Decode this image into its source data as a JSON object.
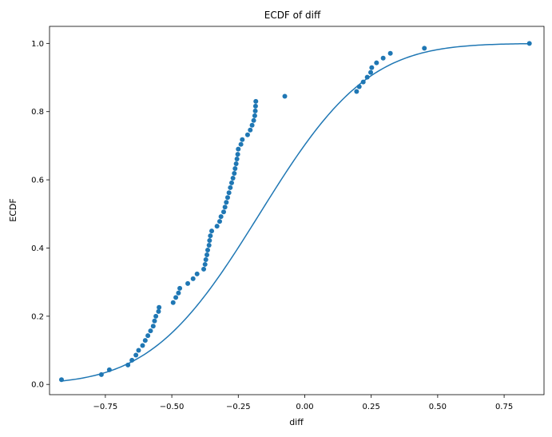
{
  "chart_data": {
    "type": "scatter",
    "title": "ECDF of diff",
    "xlabel": "diff",
    "ylabel": "ECDF",
    "xlim": [
      -0.96,
      0.9
    ],
    "ylim": [
      -0.03,
      1.05
    ],
    "xticks": [
      -0.75,
      -0.5,
      -0.25,
      0.0,
      0.25,
      0.5,
      0.75
    ],
    "xtick_labels": [
      "−0.75",
      "−0.50",
      "−0.25",
      "0.00",
      "0.25",
      "0.50",
      "0.75"
    ],
    "yticks": [
      0.0,
      0.2,
      0.4,
      0.6,
      0.8,
      1.0
    ],
    "ytick_labels": [
      "0.0",
      "0.2",
      "0.4",
      "0.6",
      "0.8",
      "1.0"
    ],
    "grid": false,
    "color": "#1f77b4",
    "points": [
      [
        -0.915,
        0.014
      ],
      [
        -0.765,
        0.029
      ],
      [
        -0.735,
        0.043
      ],
      [
        -0.665,
        0.057
      ],
      [
        -0.65,
        0.071
      ],
      [
        -0.635,
        0.086
      ],
      [
        -0.625,
        0.1
      ],
      [
        -0.61,
        0.114
      ],
      [
        -0.6,
        0.129
      ],
      [
        -0.59,
        0.143
      ],
      [
        -0.58,
        0.157
      ],
      [
        -0.57,
        0.171
      ],
      [
        -0.565,
        0.186
      ],
      [
        -0.56,
        0.2
      ],
      [
        -0.55,
        0.214
      ],
      [
        -0.548,
        0.226
      ],
      [
        -0.495,
        0.24
      ],
      [
        -0.485,
        0.255
      ],
      [
        -0.475,
        0.268
      ],
      [
        -0.47,
        0.282
      ],
      [
        -0.44,
        0.296
      ],
      [
        -0.42,
        0.31
      ],
      [
        -0.405,
        0.324
      ],
      [
        -0.38,
        0.338
      ],
      [
        -0.375,
        0.352
      ],
      [
        -0.372,
        0.366
      ],
      [
        -0.368,
        0.38
      ],
      [
        -0.365,
        0.394
      ],
      [
        -0.36,
        0.408
      ],
      [
        -0.358,
        0.422
      ],
      [
        -0.355,
        0.436
      ],
      [
        -0.35,
        0.45
      ],
      [
        -0.33,
        0.464
      ],
      [
        -0.32,
        0.478
      ],
      [
        -0.315,
        0.492
      ],
      [
        -0.305,
        0.506
      ],
      [
        -0.3,
        0.52
      ],
      [
        -0.295,
        0.534
      ],
      [
        -0.29,
        0.548
      ],
      [
        -0.285,
        0.562
      ],
      [
        -0.28,
        0.577
      ],
      [
        -0.275,
        0.591
      ],
      [
        -0.27,
        0.605
      ],
      [
        -0.265,
        0.619
      ],
      [
        -0.262,
        0.633
      ],
      [
        -0.258,
        0.647
      ],
      [
        -0.255,
        0.661
      ],
      [
        -0.252,
        0.675
      ],
      [
        -0.25,
        0.69
      ],
      [
        -0.24,
        0.704
      ],
      [
        -0.235,
        0.718
      ],
      [
        -0.215,
        0.732
      ],
      [
        -0.205,
        0.746
      ],
      [
        -0.198,
        0.76
      ],
      [
        -0.192,
        0.774
      ],
      [
        -0.188,
        0.788
      ],
      [
        -0.186,
        0.802
      ],
      [
        -0.185,
        0.816
      ],
      [
        -0.184,
        0.83
      ],
      [
        -0.075,
        0.845
      ],
      [
        0.195,
        0.859
      ],
      [
        0.205,
        0.873
      ],
      [
        0.22,
        0.887
      ],
      [
        0.235,
        0.901
      ],
      [
        0.248,
        0.915
      ],
      [
        0.252,
        0.929
      ],
      [
        0.27,
        0.943
      ],
      [
        0.295,
        0.957
      ],
      [
        0.322,
        0.971
      ],
      [
        0.45,
        0.986
      ],
      [
        0.845,
        1.0
      ]
    ],
    "fitted_cdf": {
      "type": "line",
      "mean": -0.17,
      "sd": 0.32,
      "x_range": [
        -0.915,
        0.845
      ]
    }
  }
}
